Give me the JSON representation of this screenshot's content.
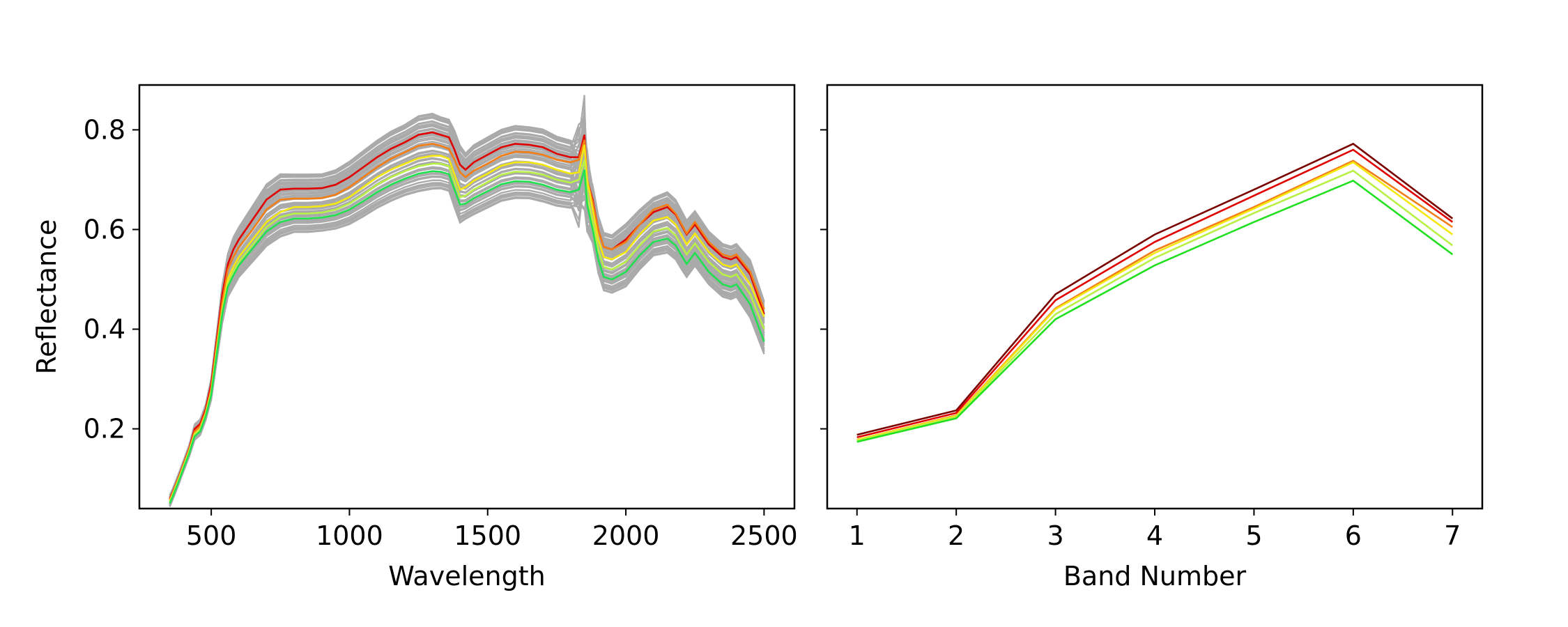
{
  "chart_data": [
    {
      "type": "line",
      "xlabel": "Wavelength",
      "ylabel": "Reflectance",
      "xlim": [
        240,
        2610
      ],
      "ylim": [
        0.04,
        0.89
      ],
      "xticks": [
        500,
        1000,
        1500,
        2000,
        2500
      ],
      "yticks": [
        0.2,
        0.4,
        0.6,
        0.8
      ],
      "x": [
        350,
        360,
        380,
        400,
        420,
        440,
        460,
        480,
        500,
        520,
        540,
        560,
        580,
        600,
        650,
        700,
        750,
        800,
        850,
        900,
        950,
        1000,
        1050,
        1100,
        1150,
        1200,
        1250,
        1300,
        1330,
        1360,
        1380,
        1400,
        1420,
        1450,
        1500,
        1550,
        1600,
        1650,
        1700,
        1750,
        1800,
        1830,
        1850,
        1860,
        1880,
        1900,
        1920,
        1950,
        2000,
        2050,
        2100,
        2150,
        2180,
        2200,
        2220,
        2250,
        2300,
        2350,
        2380,
        2400,
        2450,
        2500
      ],
      "background_color": "#aaaaaa",
      "highlight_colors": [
        "#e00000",
        "#f37e16",
        "#f5e810",
        "#b9f045",
        "#20e050"
      ],
      "series": [
        {
          "values": [
            0.06,
            0.072,
            0.1,
            0.13,
            0.16,
            0.2,
            0.21,
            0.24,
            0.29,
            0.38,
            0.47,
            0.53,
            0.56,
            0.58,
            0.62,
            0.66,
            0.68,
            0.682,
            0.682,
            0.683,
            0.69,
            0.705,
            0.725,
            0.745,
            0.762,
            0.775,
            0.79,
            0.795,
            0.79,
            0.785,
            0.76,
            0.73,
            0.72,
            0.735,
            0.75,
            0.765,
            0.772,
            0.77,
            0.765,
            0.752,
            0.745,
            0.745,
            0.79,
            0.7,
            0.66,
            0.6,
            0.565,
            0.56,
            0.58,
            0.61,
            0.635,
            0.645,
            0.63,
            0.61,
            0.59,
            0.61,
            0.57,
            0.545,
            0.54,
            0.545,
            0.51,
            0.43
          ]
        },
        {
          "values": [
            0.058,
            0.07,
            0.098,
            0.128,
            0.158,
            0.195,
            0.205,
            0.235,
            0.28,
            0.37,
            0.455,
            0.52,
            0.545,
            0.565,
            0.6,
            0.64,
            0.66,
            0.662,
            0.662,
            0.663,
            0.67,
            0.685,
            0.705,
            0.725,
            0.742,
            0.755,
            0.768,
            0.772,
            0.768,
            0.762,
            0.74,
            0.715,
            0.705,
            0.718,
            0.732,
            0.748,
            0.756,
            0.755,
            0.75,
            0.74,
            0.735,
            0.74,
            0.78,
            0.7,
            0.655,
            0.6,
            0.565,
            0.56,
            0.575,
            0.61,
            0.64,
            0.65,
            0.632,
            0.612,
            0.592,
            0.615,
            0.575,
            0.55,
            0.545,
            0.55,
            0.515,
            0.44
          ]
        },
        {
          "values": [
            0.055,
            0.068,
            0.096,
            0.126,
            0.155,
            0.19,
            0.2,
            0.23,
            0.275,
            0.36,
            0.44,
            0.5,
            0.525,
            0.545,
            0.58,
            0.615,
            0.635,
            0.645,
            0.645,
            0.647,
            0.652,
            0.665,
            0.685,
            0.705,
            0.72,
            0.732,
            0.743,
            0.748,
            0.748,
            0.742,
            0.71,
            0.68,
            0.685,
            0.698,
            0.712,
            0.728,
            0.735,
            0.735,
            0.73,
            0.72,
            0.712,
            0.715,
            0.77,
            0.7,
            0.64,
            0.58,
            0.545,
            0.54,
            0.555,
            0.59,
            0.618,
            0.625,
            0.61,
            0.59,
            0.57,
            0.592,
            0.555,
            0.53,
            0.525,
            0.53,
            0.49,
            0.425
          ]
        },
        {
          "values": [
            0.053,
            0.066,
            0.094,
            0.124,
            0.153,
            0.188,
            0.198,
            0.228,
            0.272,
            0.355,
            0.435,
            0.49,
            0.515,
            0.535,
            0.57,
            0.605,
            0.625,
            0.632,
            0.632,
            0.634,
            0.64,
            0.652,
            0.67,
            0.69,
            0.705,
            0.717,
            0.727,
            0.732,
            0.732,
            0.727,
            0.695,
            0.665,
            0.668,
            0.68,
            0.695,
            0.71,
            0.716,
            0.715,
            0.71,
            0.7,
            0.694,
            0.7,
            0.74,
            0.67,
            0.615,
            0.56,
            0.525,
            0.52,
            0.535,
            0.568,
            0.596,
            0.603,
            0.588,
            0.568,
            0.55,
            0.572,
            0.535,
            0.51,
            0.505,
            0.51,
            0.47,
            0.4
          ]
        },
        {
          "values": [
            0.05,
            0.063,
            0.091,
            0.121,
            0.15,
            0.185,
            0.195,
            0.225,
            0.268,
            0.35,
            0.43,
            0.485,
            0.508,
            0.528,
            0.562,
            0.596,
            0.615,
            0.622,
            0.622,
            0.624,
            0.629,
            0.64,
            0.657,
            0.675,
            0.69,
            0.702,
            0.712,
            0.717,
            0.716,
            0.711,
            0.68,
            0.65,
            0.652,
            0.663,
            0.677,
            0.691,
            0.697,
            0.696,
            0.69,
            0.68,
            0.675,
            0.68,
            0.72,
            0.65,
            0.6,
            0.54,
            0.505,
            0.5,
            0.515,
            0.548,
            0.575,
            0.582,
            0.568,
            0.549,
            0.531,
            0.553,
            0.515,
            0.49,
            0.485,
            0.49,
            0.45,
            0.375
          ]
        }
      ]
    },
    {
      "type": "line",
      "xlabel": "Band Number",
      "ylabel": "",
      "xlim": [
        0.7,
        7.3
      ],
      "ylim": [
        0.04,
        0.89
      ],
      "xticks": [
        1,
        2,
        3,
        4,
        5,
        6,
        7
      ],
      "yticks": [
        0.2,
        0.4,
        0.6,
        0.8
      ],
      "x": [
        1,
        2,
        3,
        4,
        5,
        6,
        7
      ],
      "series": [
        {
          "color": "#7a0000",
          "values": [
            0.188,
            0.237,
            0.47,
            0.59,
            0.68,
            0.772,
            0.622
          ]
        },
        {
          "color": "#e00000",
          "values": [
            0.183,
            0.232,
            0.458,
            0.575,
            0.668,
            0.76,
            0.615
          ]
        },
        {
          "color": "#f37e16",
          "values": [
            0.178,
            0.227,
            0.442,
            0.558,
            0.645,
            0.738,
            0.605
          ]
        },
        {
          "color": "#f5e810",
          "values": [
            0.178,
            0.226,
            0.44,
            0.553,
            0.642,
            0.735,
            0.59
          ]
        },
        {
          "color": "#b9f045",
          "values": [
            0.176,
            0.224,
            0.43,
            0.543,
            0.633,
            0.718,
            0.568
          ]
        },
        {
          "color": "#20e020",
          "values": [
            0.174,
            0.221,
            0.42,
            0.528,
            0.615,
            0.698,
            0.55
          ]
        }
      ]
    }
  ]
}
